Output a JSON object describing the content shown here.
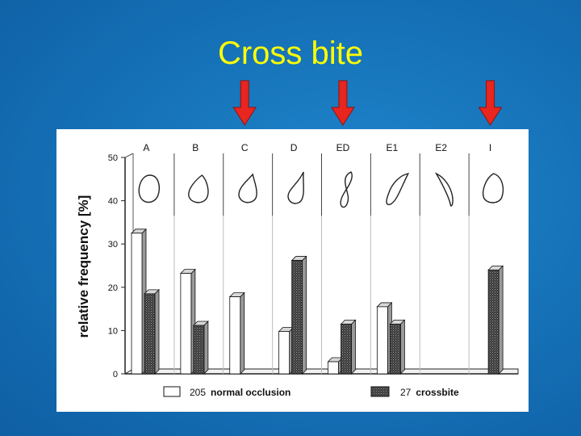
{
  "slide": {
    "title": "Cross bite",
    "title_color": "#ffff00",
    "background_color": "#1570b6"
  },
  "arrows": {
    "color": "#e8251f",
    "marked_categories": [
      "C",
      "ED",
      "I"
    ]
  },
  "chart_data": {
    "type": "bar",
    "title": "",
    "xlabel": "",
    "ylabel": "relative frequency [%]",
    "ylim": [
      0,
      50
    ],
    "yticks": [
      "0",
      "10",
      "20",
      "30",
      "40",
      "50"
    ],
    "categories": [
      "A",
      "B",
      "C",
      "D",
      "ED",
      "E1",
      "E2",
      "I"
    ],
    "series": [
      {
        "name": "normal occlusion",
        "count": "205",
        "pattern": "white",
        "values": [
          32.5,
          23.2,
          17.8,
          9.8,
          2.8,
          15.5,
          0,
          0
        ]
      },
      {
        "name": "crossbite",
        "count": "27",
        "pattern": "dotted",
        "values": [
          18.5,
          11.2,
          0,
          26.2,
          11.5,
          11.5,
          0,
          24
        ]
      }
    ],
    "legend": [
      {
        "count": "205",
        "label": "normal occlusion"
      },
      {
        "count": "27",
        "label": "crossbite"
      }
    ]
  }
}
